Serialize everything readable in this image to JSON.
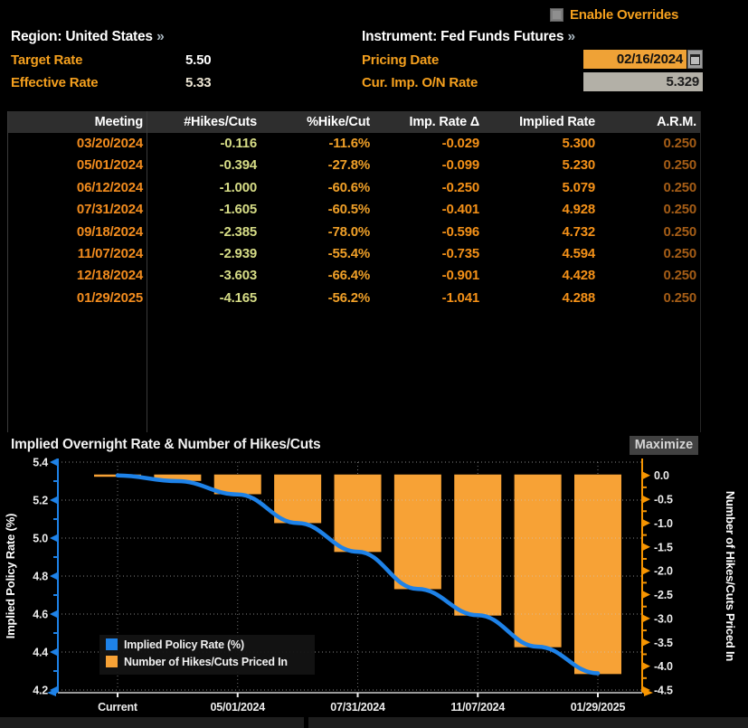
{
  "top": {
    "enable_overrides": "Enable Overrides",
    "region_label": "Region: United States",
    "instrument_label": "Instrument: Fed Funds Futures",
    "chevron": "»",
    "target_rate_label": "Target Rate",
    "target_rate_value": "5.50",
    "effective_rate_label": "Effective Rate",
    "effective_rate_value": "5.33",
    "pricing_date_label": "Pricing Date",
    "pricing_date_value": "02/16/2024",
    "cur_imp_label": "Cur. Imp. O/N Rate",
    "cur_imp_value": "5.329"
  },
  "table": {
    "columns": [
      "Meeting",
      "#Hikes/Cuts",
      "%Hike/Cut",
      "Imp. Rate Δ",
      "Implied Rate",
      "A.R.M."
    ],
    "column_keys": [
      "meeting",
      "hikes-cuts",
      "pct-hike-cut",
      "imp-rate-delta",
      "implied-rate",
      "arm"
    ],
    "column_colors": [
      "#f28c1e",
      "#d6dc86",
      "#f0a028",
      "#f49118",
      "#f49118",
      "#a55d16"
    ],
    "rows": [
      [
        "03/20/2024",
        "-0.116",
        "-11.6%",
        "-0.029",
        "5.300",
        "0.250"
      ],
      [
        "05/01/2024",
        "-0.394",
        "-27.8%",
        "-0.099",
        "5.230",
        "0.250"
      ],
      [
        "06/12/2024",
        "-1.000",
        "-60.6%",
        "-0.250",
        "5.079",
        "0.250"
      ],
      [
        "07/31/2024",
        "-1.605",
        "-60.5%",
        "-0.401",
        "4.928",
        "0.250"
      ],
      [
        "09/18/2024",
        "-2.385",
        "-78.0%",
        "-0.596",
        "4.732",
        "0.250"
      ],
      [
        "11/07/2024",
        "-2.939",
        "-55.4%",
        "-0.735",
        "4.594",
        "0.250"
      ],
      [
        "12/18/2024",
        "-3.603",
        "-66.4%",
        "-0.901",
        "4.428",
        "0.250"
      ],
      [
        "01/29/2025",
        "-4.165",
        "-56.2%",
        "-1.041",
        "4.288",
        "0.250"
      ]
    ]
  },
  "chart": {
    "title": "Implied Overnight Rate & Number of Hikes/Cuts",
    "maximize_label": "Maximize"
  },
  "chart_data": {
    "type": "line+bar",
    "title": "Implied Overnight Rate & Number of Hikes/Cuts",
    "categories": [
      "Current",
      "03/20/2024",
      "05/01/2024",
      "06/12/2024",
      "07/31/2024",
      "09/18/2024",
      "11/07/2024",
      "12/18/2024",
      "01/29/2025"
    ],
    "series": [
      {
        "name": "Implied Policy Rate (%)",
        "type": "line",
        "axis": "left",
        "color": "#1e82e8",
        "values": [
          5.33,
          5.3,
          5.23,
          5.079,
          4.928,
          4.732,
          4.594,
          4.428,
          4.288
        ]
      },
      {
        "name": "Number of Hikes/Cuts Priced In",
        "type": "bar",
        "axis": "right",
        "color": "#f7a236",
        "values": [
          0,
          -0.116,
          -0.394,
          -1.0,
          -1.605,
          -2.385,
          -2.939,
          -3.603,
          -4.165
        ]
      }
    ],
    "left_axis": {
      "label": "Implied Policy Rate (%)",
      "min": 4.2,
      "max": 5.4,
      "color": "#1e82e8",
      "tick_labels": [
        "5.4",
        "5.2",
        "5.0",
        "4.8",
        "4.6",
        "4.4",
        "4.2"
      ]
    },
    "right_axis": {
      "label": "Number of Hikes/Cuts Priced In",
      "min": -4.5,
      "max": 0.0,
      "color": "#f79500",
      "tick_labels": [
        "0.0",
        "-0.5",
        "-1.0",
        "-1.5",
        "-2.0",
        "-2.5",
        "-3.0",
        "-3.5",
        "-4.0",
        "-4.5"
      ],
      "zero_aligns_with_left_value": 5.33
    },
    "x_axis": {
      "labeled_categories": [
        "Current",
        "05/01/2024",
        "07/31/2024",
        "11/07/2024",
        "01/29/2025"
      ],
      "labeled_slots": [
        0,
        2,
        4,
        6,
        8
      ]
    },
    "legend": [
      {
        "label": "Implied Policy Rate (%)",
        "color": "#1e82e8"
      },
      {
        "label": "Number of Hikes/Cuts Priced In",
        "color": "#f7a236"
      }
    ],
    "grid": true,
    "legend_position": "bottom-left"
  }
}
